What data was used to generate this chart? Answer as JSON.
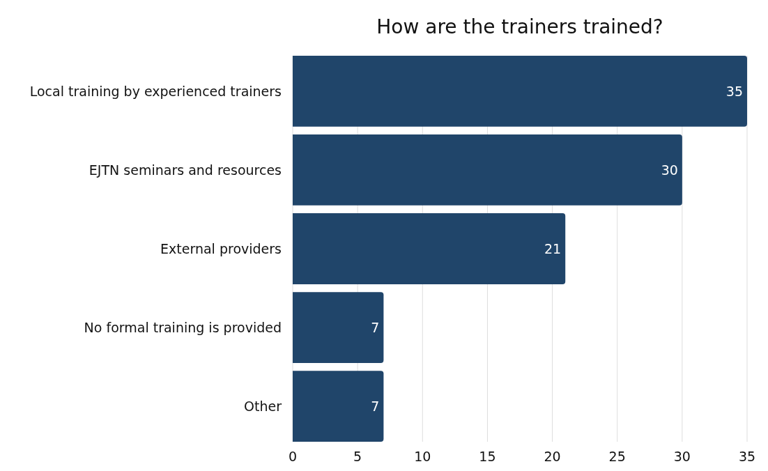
{
  "chart_data": {
    "type": "bar",
    "orientation": "horizontal",
    "title": "How are the trainers trained?",
    "categories": [
      "Local training by experienced trainers",
      "EJTN seminars and resources",
      "External providers",
      "No formal training is provided",
      "Other"
    ],
    "values": [
      35,
      30,
      21,
      7,
      7
    ],
    "color": "#20456a",
    "xlim": [
      0,
      35
    ],
    "xticks": [
      0,
      5,
      10,
      15,
      20,
      25,
      30,
      35
    ],
    "grid": "x",
    "data_labels": true
  }
}
